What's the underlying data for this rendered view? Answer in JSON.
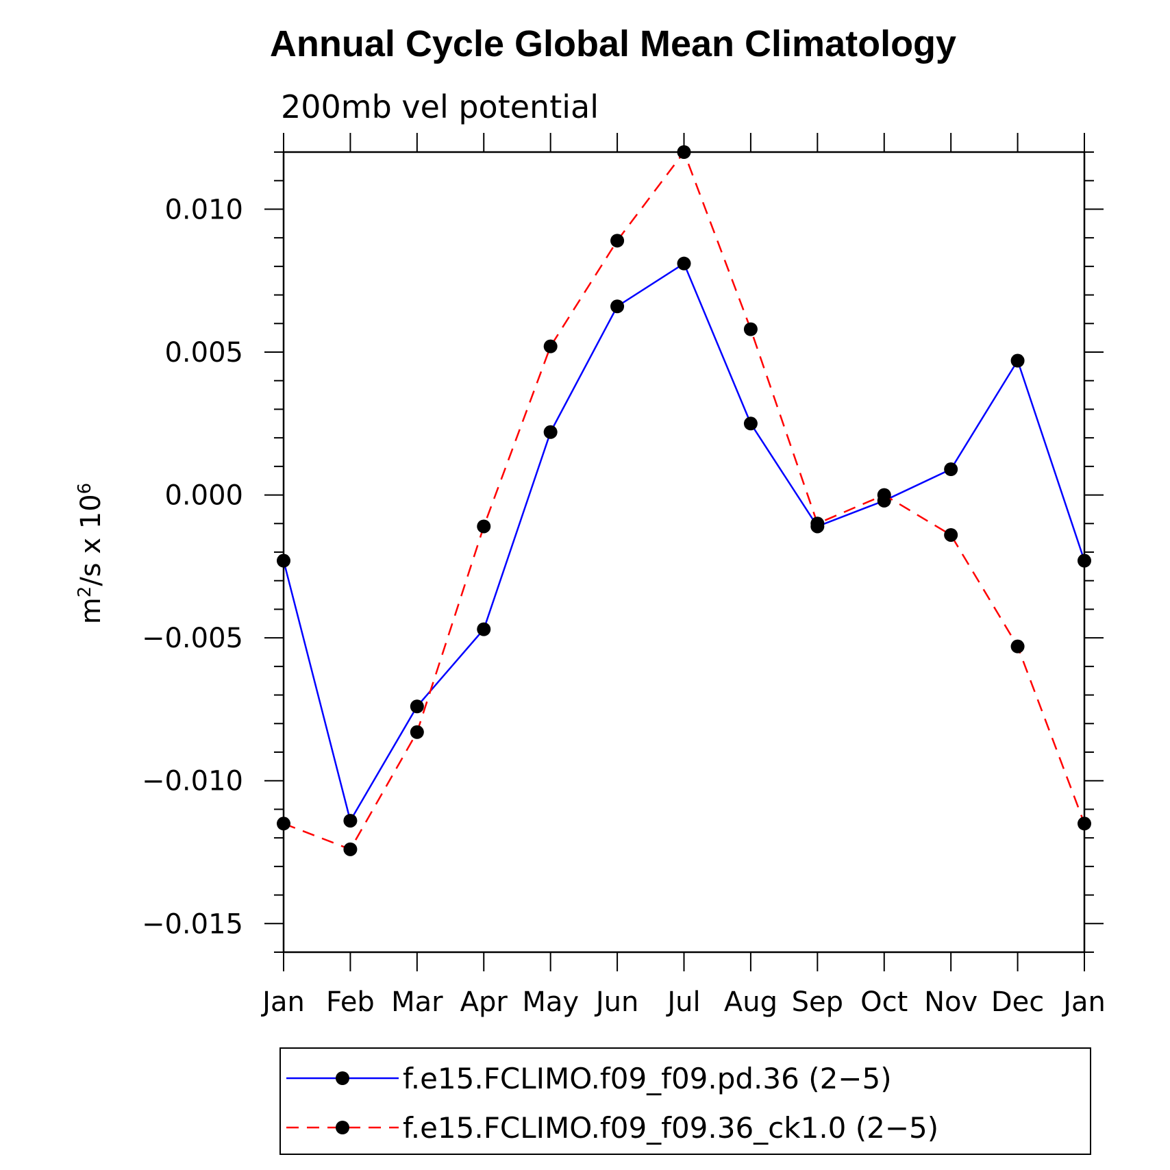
{
  "chart_data": {
    "type": "line",
    "title": "Annual Cycle Global Mean Climatology",
    "subtitle": "200mb vel potential",
    "ylabel_base": "m",
    "ylabel_sup1": "2",
    "ylabel_mid": "/s x 10",
    "ylabel_sup2": "6",
    "categories": [
      "Jan",
      "Feb",
      "Mar",
      "Apr",
      "May",
      "Jun",
      "Jul",
      "Aug",
      "Sep",
      "Oct",
      "Nov",
      "Dec",
      "Jan"
    ],
    "ylim": [
      -0.016,
      0.012
    ],
    "yticks": [
      -0.015,
      -0.01,
      -0.005,
      0.0,
      0.005,
      0.01
    ],
    "ytick_labels": [
      "−0.015",
      "−0.010",
      "−0.005",
      "0.000",
      "0.005",
      "0.010"
    ],
    "series": [
      {
        "name": "f.e15.FCLIMO.f09_f09.pd.36 (2−5)",
        "color": "#0000ff",
        "dash": "solid",
        "values": [
          -0.0023,
          -0.0114,
          -0.0074,
          -0.0047,
          0.0022,
          0.0066,
          0.0081,
          0.0025,
          -0.0011,
          -0.0002,
          0.0009,
          0.0047,
          -0.0023
        ]
      },
      {
        "name": "f.e15.FCLIMO.f09_f09.36_ck1.0 (2−5)",
        "color": "#ff0000",
        "dash": "dashed",
        "values": [
          -0.0115,
          -0.0124,
          -0.0083,
          -0.0011,
          0.0052,
          0.0089,
          0.012,
          0.0058,
          -0.001,
          0.0,
          -0.0014,
          -0.0053,
          -0.0115
        ]
      }
    ],
    "legend_position": "bottom"
  }
}
